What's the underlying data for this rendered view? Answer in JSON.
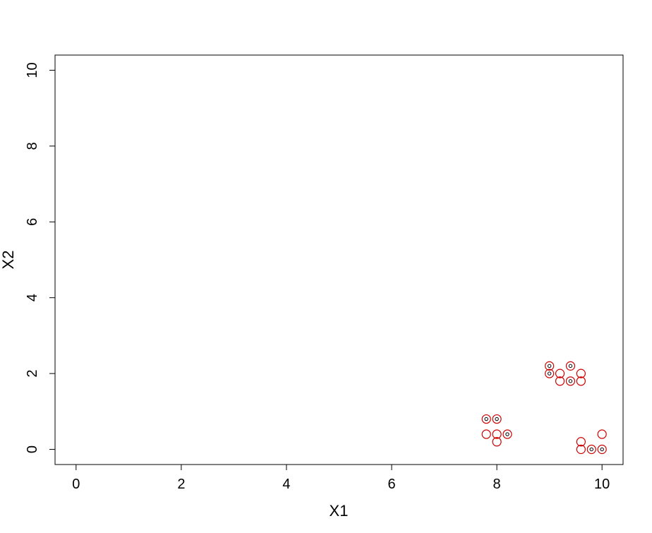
{
  "chart_data": {
    "type": "scatter",
    "title": "",
    "xlabel": "X1",
    "ylabel": "X2",
    "xlim": [
      -0.4,
      10.4
    ],
    "ylim": [
      -0.4,
      10.4
    ],
    "xticks": [
      0,
      2,
      4,
      6,
      8,
      10
    ],
    "yticks": [
      0,
      2,
      4,
      6,
      8,
      10
    ],
    "xtick_labels": [
      "0",
      "2",
      "4",
      "6",
      "8",
      "10"
    ],
    "ytick_labels": [
      "0",
      "2",
      "4",
      "6",
      "8",
      "10"
    ],
    "grid": false,
    "series": [
      {
        "marker": "open-circle",
        "color": "#cc0000",
        "points": [
          {
            "x": 7.8,
            "y": 0.8
          },
          {
            "x": 8.0,
            "y": 0.8
          },
          {
            "x": 7.8,
            "y": 0.4
          },
          {
            "x": 8.0,
            "y": 0.4
          },
          {
            "x": 8.2,
            "y": 0.4
          },
          {
            "x": 8.0,
            "y": 0.2
          },
          {
            "x": 9.0,
            "y": 2.2
          },
          {
            "x": 9.4,
            "y": 2.2
          },
          {
            "x": 9.0,
            "y": 2.0
          },
          {
            "x": 9.2,
            "y": 2.0
          },
          {
            "x": 9.6,
            "y": 2.0
          },
          {
            "x": 9.2,
            "y": 1.8
          },
          {
            "x": 9.4,
            "y": 1.8
          },
          {
            "x": 9.6,
            "y": 1.8
          },
          {
            "x": 9.6,
            "y": 0.2
          },
          {
            "x": 10.0,
            "y": 0.4
          },
          {
            "x": 9.6,
            "y": 0.0
          },
          {
            "x": 9.8,
            "y": 0.0
          },
          {
            "x": 10.0,
            "y": 0.0
          }
        ]
      },
      {
        "marker": "small-circle",
        "color": "#000000",
        "points": [
          {
            "x": 7.8,
            "y": 0.8
          },
          {
            "x": 8.0,
            "y": 0.8
          },
          {
            "x": 8.2,
            "y": 0.4
          },
          {
            "x": 9.0,
            "y": 2.2
          },
          {
            "x": 9.4,
            "y": 2.2
          },
          {
            "x": 9.0,
            "y": 2.0
          },
          {
            "x": 9.4,
            "y": 1.8
          },
          {
            "x": 9.8,
            "y": 0.0
          },
          {
            "x": 10.0,
            "y": 0.0
          }
        ]
      }
    ]
  }
}
